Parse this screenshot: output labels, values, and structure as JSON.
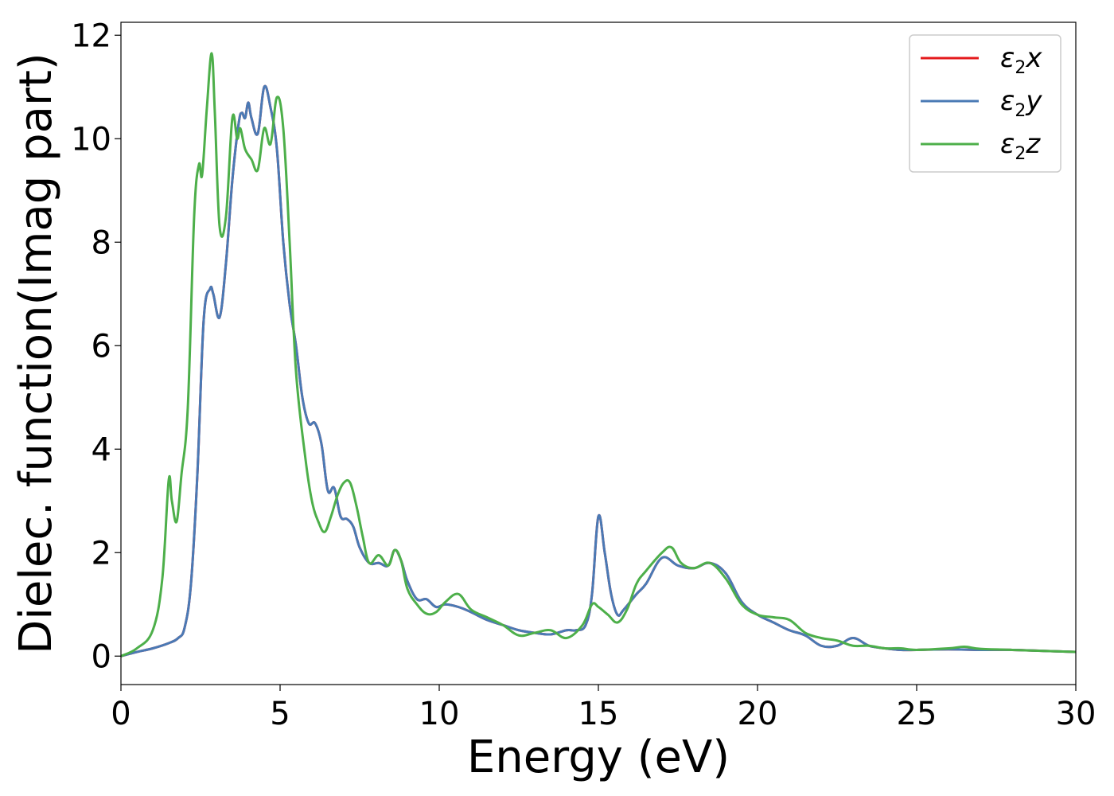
{
  "chart_data": {
    "type": "line",
    "title": "",
    "xlabel": "Energy (eV)",
    "ylabel": "Dielec. function(Imag part)",
    "xlim": [
      0,
      30
    ],
    "ylim": [
      -0.55,
      12.25
    ],
    "xticks": [
      0,
      5,
      10,
      15,
      20,
      25,
      30
    ],
    "yticks": [
      0,
      2,
      4,
      6,
      8,
      10,
      12
    ],
    "grid": false,
    "legend_position": "top-right",
    "series": [
      {
        "name": "ε2x",
        "legend_main": "ε",
        "legend_sub": "2",
        "legend_var": "x",
        "color": "#e41a1c",
        "x": [
          0,
          0.5,
          1,
          1.5,
          1.8,
          2,
          2.2,
          2.4,
          2.6,
          2.8,
          2.9,
          3.1,
          3.3,
          3.5,
          3.7,
          3.8,
          3.9,
          4.0,
          4.1,
          4.3,
          4.5,
          4.7,
          4.9,
          5.1,
          5.3,
          5.5,
          5.7,
          5.9,
          6.1,
          6.3,
          6.5,
          6.7,
          6.9,
          7.1,
          7.3,
          7.5,
          7.8,
          8.1,
          8.4,
          8.6,
          8.8,
          9.0,
          9.3,
          9.6,
          9.9,
          10.2,
          10.6,
          11.0,
          11.5,
          12,
          12.5,
          13,
          13.5,
          14,
          14.3,
          14.6,
          14.8,
          15.0,
          15.2,
          15.4,
          15.6,
          15.8,
          16.2,
          16.5,
          17,
          17.5,
          18,
          18.5,
          19,
          19.5,
          20,
          20.5,
          21,
          21.5,
          22,
          22.5,
          23,
          23.5,
          24,
          24.5,
          25,
          26,
          27,
          28,
          29,
          30
        ],
        "values": [
          0,
          0.08,
          0.15,
          0.25,
          0.35,
          0.55,
          1.4,
          3.5,
          6.5,
          7.1,
          7.0,
          6.55,
          7.6,
          9.2,
          10.3,
          10.5,
          10.4,
          10.7,
          10.4,
          10.1,
          11.0,
          10.6,
          9.8,
          8.0,
          6.8,
          6.0,
          5.0,
          4.5,
          4.5,
          4.1,
          3.2,
          3.25,
          2.7,
          2.65,
          2.5,
          2.1,
          1.8,
          1.8,
          1.75,
          2.05,
          1.85,
          1.45,
          1.1,
          1.1,
          0.95,
          1.0,
          0.95,
          0.85,
          0.7,
          0.6,
          0.5,
          0.45,
          0.42,
          0.5,
          0.5,
          0.6,
          1.2,
          2.7,
          2.0,
          1.2,
          0.8,
          0.9,
          1.2,
          1.4,
          1.9,
          1.75,
          1.7,
          1.8,
          1.6,
          1.05,
          0.8,
          0.65,
          0.5,
          0.4,
          0.2,
          0.2,
          0.35,
          0.2,
          0.15,
          0.12,
          0.12,
          0.13,
          0.12,
          0.12,
          0.1,
          0.08
        ]
      },
      {
        "name": "ε2y",
        "legend_main": "ε",
        "legend_sub": "2",
        "legend_var": "y",
        "color": "#4a7ab5",
        "x": [
          0,
          0.5,
          1,
          1.5,
          1.8,
          2,
          2.2,
          2.4,
          2.6,
          2.8,
          2.9,
          3.1,
          3.3,
          3.5,
          3.7,
          3.8,
          3.9,
          4.0,
          4.1,
          4.3,
          4.5,
          4.7,
          4.9,
          5.1,
          5.3,
          5.5,
          5.7,
          5.9,
          6.1,
          6.3,
          6.5,
          6.7,
          6.9,
          7.1,
          7.3,
          7.5,
          7.8,
          8.1,
          8.4,
          8.6,
          8.8,
          9.0,
          9.3,
          9.6,
          9.9,
          10.2,
          10.6,
          11.0,
          11.5,
          12,
          12.5,
          13,
          13.5,
          14,
          14.3,
          14.6,
          14.8,
          15.0,
          15.2,
          15.4,
          15.6,
          15.8,
          16.2,
          16.5,
          17,
          17.5,
          18,
          18.5,
          19,
          19.5,
          20,
          20.5,
          21,
          21.5,
          22,
          22.5,
          23,
          23.5,
          24,
          24.5,
          25,
          26,
          27,
          28,
          29,
          30
        ],
        "values": [
          0,
          0.08,
          0.15,
          0.25,
          0.35,
          0.55,
          1.4,
          3.5,
          6.5,
          7.1,
          7.0,
          6.55,
          7.6,
          9.2,
          10.3,
          10.5,
          10.4,
          10.7,
          10.4,
          10.1,
          11.0,
          10.6,
          9.8,
          8.0,
          6.8,
          6.0,
          5.0,
          4.5,
          4.5,
          4.1,
          3.2,
          3.25,
          2.7,
          2.65,
          2.5,
          2.1,
          1.8,
          1.8,
          1.75,
          2.05,
          1.85,
          1.45,
          1.1,
          1.1,
          0.95,
          1.0,
          0.95,
          0.85,
          0.7,
          0.6,
          0.5,
          0.45,
          0.42,
          0.5,
          0.5,
          0.6,
          1.2,
          2.7,
          2.0,
          1.2,
          0.8,
          0.9,
          1.2,
          1.4,
          1.9,
          1.75,
          1.7,
          1.8,
          1.6,
          1.05,
          0.8,
          0.65,
          0.5,
          0.4,
          0.2,
          0.2,
          0.35,
          0.2,
          0.15,
          0.12,
          0.12,
          0.13,
          0.12,
          0.12,
          0.1,
          0.08
        ]
      },
      {
        "name": "ε2z",
        "legend_main": "ε",
        "legend_sub": "2",
        "legend_var": "z",
        "color": "#4daf4a",
        "x": [
          0,
          0.5,
          1,
          1.3,
          1.5,
          1.6,
          1.75,
          1.9,
          2.1,
          2.3,
          2.45,
          2.55,
          2.7,
          2.85,
          2.95,
          3.1,
          3.3,
          3.5,
          3.65,
          3.75,
          3.9,
          4.1,
          4.3,
          4.5,
          4.7,
          4.9,
          5.1,
          5.3,
          5.5,
          5.8,
          6.0,
          6.2,
          6.4,
          6.6,
          6.8,
          7.0,
          7.2,
          7.4,
          7.6,
          7.8,
          8.1,
          8.4,
          8.6,
          8.8,
          9.0,
          9.3,
          9.6,
          9.9,
          10.2,
          10.6,
          11.0,
          11.5,
          12,
          12.5,
          13,
          13.5,
          14,
          14.5,
          14.8,
          15.0,
          15.3,
          15.6,
          15.9,
          16.2,
          16.5,
          17,
          17.3,
          17.6,
          18,
          18.5,
          19,
          19.5,
          20,
          20.5,
          21,
          21.5,
          22,
          22.5,
          23,
          23.5,
          24,
          24.5,
          25,
          26,
          26.5,
          27,
          28,
          29,
          30
        ],
        "values": [
          0,
          0.15,
          0.5,
          1.5,
          3.4,
          3.0,
          2.6,
          3.5,
          4.8,
          8.5,
          9.5,
          9.3,
          10.6,
          11.65,
          10.5,
          8.3,
          8.5,
          10.4,
          10.0,
          10.2,
          9.8,
          9.6,
          9.4,
          10.2,
          9.9,
          10.8,
          10.2,
          8.0,
          5.5,
          3.8,
          3.0,
          2.6,
          2.4,
          2.7,
          3.1,
          3.35,
          3.35,
          2.9,
          2.3,
          1.8,
          1.95,
          1.75,
          2.05,
          1.85,
          1.3,
          1.0,
          0.82,
          0.85,
          1.05,
          1.2,
          0.9,
          0.75,
          0.6,
          0.4,
          0.45,
          0.5,
          0.35,
          0.6,
          1.0,
          0.95,
          0.8,
          0.65,
          0.9,
          1.4,
          1.65,
          2.0,
          2.1,
          1.8,
          1.7,
          1.8,
          1.5,
          1.0,
          0.8,
          0.75,
          0.7,
          0.45,
          0.35,
          0.3,
          0.2,
          0.2,
          0.15,
          0.15,
          0.12,
          0.15,
          0.18,
          0.14,
          0.12,
          0.1,
          0.08
        ]
      }
    ]
  }
}
